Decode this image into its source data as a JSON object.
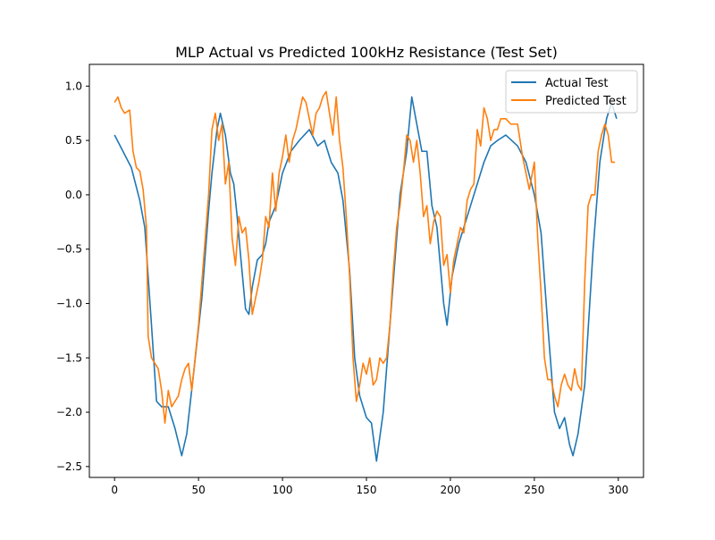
{
  "chart_data": {
    "type": "line",
    "title": "MLP Actual vs Predicted 100kHz Resistance (Test Set)",
    "xlabel": "",
    "ylabel": "",
    "xlim": [
      -15,
      315
    ],
    "ylim": [
      -2.6,
      1.2
    ],
    "xticks": [
      0,
      50,
      100,
      150,
      200,
      250,
      300
    ],
    "yticks": [
      -2.5,
      -2.0,
      -1.5,
      -1.0,
      -0.5,
      0.0,
      0.5,
      1.0
    ],
    "ytick_labels": [
      "−2.5",
      "−2.0",
      "−1.5",
      "−1.0",
      "−0.5",
      "0.0",
      "0.5",
      "1.0"
    ],
    "grid": false,
    "legend_position": "top-right",
    "series": [
      {
        "name": "Actual Test",
        "color": "#1f77b4",
        "points": [
          [
            0,
            0.55
          ],
          [
            5,
            0.4
          ],
          [
            10,
            0.25
          ],
          [
            15,
            -0.05
          ],
          [
            18,
            -0.3
          ],
          [
            22,
            -1.2
          ],
          [
            25,
            -1.9
          ],
          [
            28,
            -1.95
          ],
          [
            32,
            -1.95
          ],
          [
            36,
            -2.15
          ],
          [
            40,
            -2.4
          ],
          [
            43,
            -2.2
          ],
          [
            47,
            -1.65
          ],
          [
            52,
            -0.95
          ],
          [
            56,
            -0.15
          ],
          [
            58,
            0.2
          ],
          [
            61,
            0.6
          ],
          [
            63,
            0.75
          ],
          [
            66,
            0.55
          ],
          [
            69,
            0.2
          ],
          [
            71,
            0.1
          ],
          [
            73,
            -0.2
          ],
          [
            75,
            -0.55
          ],
          [
            78,
            -1.05
          ],
          [
            80,
            -1.1
          ],
          [
            82,
            -0.85
          ],
          [
            85,
            -0.6
          ],
          [
            88,
            -0.55
          ],
          [
            90,
            -0.45
          ],
          [
            92,
            -0.25
          ],
          [
            96,
            -0.1
          ],
          [
            100,
            0.2
          ],
          [
            105,
            0.4
          ],
          [
            110,
            0.5
          ],
          [
            116,
            0.6
          ],
          [
            121,
            0.45
          ],
          [
            125,
            0.5
          ],
          [
            129,
            0.3
          ],
          [
            133,
            0.2
          ],
          [
            136,
            -0.05
          ],
          [
            140,
            -0.7
          ],
          [
            143,
            -1.5
          ],
          [
            146,
            -1.85
          ],
          [
            150,
            -2.05
          ],
          [
            153,
            -2.1
          ],
          [
            156,
            -2.45
          ],
          [
            160,
            -2.0
          ],
          [
            165,
            -1.0
          ],
          [
            170,
            0.0
          ],
          [
            174,
            0.4
          ],
          [
            177,
            0.9
          ],
          [
            180,
            0.65
          ],
          [
            183,
            0.4
          ],
          [
            186,
            0.4
          ],
          [
            189,
            -0.1
          ],
          [
            192,
            -0.3
          ],
          [
            196,
            -1.0
          ],
          [
            198,
            -1.2
          ],
          [
            201,
            -0.75
          ],
          [
            205,
            -0.45
          ],
          [
            209,
            -0.25
          ],
          [
            212,
            -0.1
          ],
          [
            216,
            0.1
          ],
          [
            220,
            0.3
          ],
          [
            224,
            0.45
          ],
          [
            228,
            0.5
          ],
          [
            233,
            0.55
          ],
          [
            240,
            0.45
          ],
          [
            245,
            0.3
          ],
          [
            250,
            0.0
          ],
          [
            254,
            -0.35
          ],
          [
            258,
            -1.2
          ],
          [
            262,
            -2.0
          ],
          [
            265,
            -2.15
          ],
          [
            268,
            -2.05
          ],
          [
            271,
            -2.3
          ],
          [
            273,
            -2.4
          ],
          [
            276,
            -2.2
          ],
          [
            280,
            -1.75
          ],
          [
            285,
            -0.5
          ],
          [
            289,
            0.3
          ],
          [
            293,
            0.7
          ],
          [
            296,
            0.85
          ],
          [
            299,
            0.7
          ]
        ]
      },
      {
        "name": "Predicted Test",
        "color": "#ff7f0e",
        "points": [
          [
            0,
            0.85
          ],
          [
            2,
            0.9
          ],
          [
            4,
            0.8
          ],
          [
            6,
            0.75
          ],
          [
            9,
            0.78
          ],
          [
            11,
            0.4
          ],
          [
            13,
            0.25
          ],
          [
            15,
            0.22
          ],
          [
            17,
            0.05
          ],
          [
            19,
            -0.3
          ],
          [
            20,
            -1.3
          ],
          [
            22,
            -1.5
          ],
          [
            24,
            -1.55
          ],
          [
            26,
            -1.6
          ],
          [
            28,
            -1.8
          ],
          [
            30,
            -2.1
          ],
          [
            32,
            -1.8
          ],
          [
            34,
            -1.95
          ],
          [
            36,
            -1.9
          ],
          [
            38,
            -1.85
          ],
          [
            40,
            -1.7
          ],
          [
            42,
            -1.6
          ],
          [
            44,
            -1.55
          ],
          [
            46,
            -1.8
          ],
          [
            48,
            -1.5
          ],
          [
            50,
            -1.2
          ],
          [
            52,
            -0.8
          ],
          [
            54,
            -0.4
          ],
          [
            56,
            0.0
          ],
          [
            58,
            0.6
          ],
          [
            60,
            0.75
          ],
          [
            62,
            0.5
          ],
          [
            64,
            0.65
          ],
          [
            66,
            0.1
          ],
          [
            68,
            0.3
          ],
          [
            70,
            -0.4
          ],
          [
            72,
            -0.65
          ],
          [
            74,
            -0.2
          ],
          [
            76,
            -0.35
          ],
          [
            78,
            -0.3
          ],
          [
            80,
            -0.6
          ],
          [
            82,
            -1.1
          ],
          [
            84,
            -0.95
          ],
          [
            86,
            -0.8
          ],
          [
            88,
            -0.6
          ],
          [
            90,
            -0.2
          ],
          [
            92,
            -0.3
          ],
          [
            94,
            0.2
          ],
          [
            96,
            -0.15
          ],
          [
            98,
            0.2
          ],
          [
            100,
            0.35
          ],
          [
            102,
            0.55
          ],
          [
            104,
            0.3
          ],
          [
            106,
            0.5
          ],
          [
            108,
            0.6
          ],
          [
            110,
            0.75
          ],
          [
            112,
            0.9
          ],
          [
            114,
            0.85
          ],
          [
            116,
            0.7
          ],
          [
            118,
            0.55
          ],
          [
            120,
            0.75
          ],
          [
            122,
            0.8
          ],
          [
            124,
            0.9
          ],
          [
            126,
            0.95
          ],
          [
            128,
            0.75
          ],
          [
            130,
            0.55
          ],
          [
            132,
            0.9
          ],
          [
            134,
            0.5
          ],
          [
            136,
            0.25
          ],
          [
            138,
            -0.2
          ],
          [
            140,
            -0.75
          ],
          [
            142,
            -1.5
          ],
          [
            144,
            -1.9
          ],
          [
            146,
            -1.75
          ],
          [
            148,
            -1.55
          ],
          [
            150,
            -1.65
          ],
          [
            152,
            -1.5
          ],
          [
            154,
            -1.75
          ],
          [
            156,
            -1.7
          ],
          [
            158,
            -1.5
          ],
          [
            160,
            -1.55
          ],
          [
            162,
            -1.5
          ],
          [
            164,
            -1.2
          ],
          [
            166,
            -0.7
          ],
          [
            168,
            -0.3
          ],
          [
            170,
            -0.1
          ],
          [
            172,
            0.2
          ],
          [
            174,
            0.55
          ],
          [
            176,
            0.5
          ],
          [
            178,
            0.3
          ],
          [
            180,
            0.5
          ],
          [
            182,
            0.2
          ],
          [
            184,
            -0.2
          ],
          [
            186,
            -0.1
          ],
          [
            188,
            -0.45
          ],
          [
            190,
            -0.25
          ],
          [
            192,
            -0.15
          ],
          [
            194,
            -0.2
          ],
          [
            196,
            -0.65
          ],
          [
            198,
            -0.55
          ],
          [
            200,
            -0.9
          ],
          [
            202,
            -0.6
          ],
          [
            204,
            -0.45
          ],
          [
            206,
            -0.3
          ],
          [
            208,
            -0.35
          ],
          [
            210,
            -0.05
          ],
          [
            212,
            0.05
          ],
          [
            214,
            0.1
          ],
          [
            216,
            0.6
          ],
          [
            218,
            0.45
          ],
          [
            220,
            0.8
          ],
          [
            222,
            0.7
          ],
          [
            224,
            0.5
          ],
          [
            226,
            0.6
          ],
          [
            228,
            0.6
          ],
          [
            230,
            0.7
          ],
          [
            233,
            0.7
          ],
          [
            236,
            0.65
          ],
          [
            240,
            0.65
          ],
          [
            243,
            0.35
          ],
          [
            245,
            0.2
          ],
          [
            247,
            0.05
          ],
          [
            250,
            0.3
          ],
          [
            252,
            -0.4
          ],
          [
            254,
            -0.9
          ],
          [
            256,
            -1.5
          ],
          [
            258,
            -1.7
          ],
          [
            260,
            -1.7
          ],
          [
            262,
            -1.85
          ],
          [
            264,
            -1.95
          ],
          [
            266,
            -1.75
          ],
          [
            268,
            -1.65
          ],
          [
            270,
            -1.75
          ],
          [
            272,
            -1.8
          ],
          [
            274,
            -1.6
          ],
          [
            276,
            -1.75
          ],
          [
            278,
            -1.8
          ],
          [
            280,
            -0.8
          ],
          [
            282,
            -0.1
          ],
          [
            284,
            0.0
          ],
          [
            286,
            0.0
          ],
          [
            288,
            0.4
          ],
          [
            290,
            0.55
          ],
          [
            292,
            0.65
          ],
          [
            294,
            0.55
          ],
          [
            296,
            0.3
          ],
          [
            298,
            0.3
          ]
        ]
      }
    ]
  }
}
